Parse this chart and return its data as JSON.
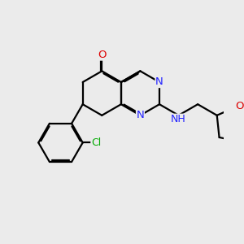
{
  "bg": "#ebebeb",
  "bond_color": "#000000",
  "bond_lw": 1.6,
  "dbo": 0.055,
  "atom_colors": {
    "N": "#2222ff",
    "O": "#dd0000",
    "Cl": "#00aa00",
    "C": "#000000"
  },
  "fs": 9.5
}
